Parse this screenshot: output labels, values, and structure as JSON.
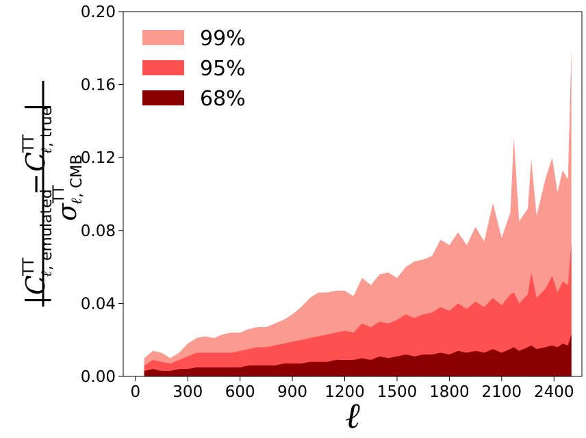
{
  "chart_data": {
    "type": "area",
    "xlabel": "ℓ",
    "ylabel": {
      "numerator": "|C_{ℓ,emulated}^{TT} − C_{ℓ,true}^{TT}|",
      "denominator": "σ_{ℓ,CMB}^{TT}",
      "num_C": "C",
      "num_ell": "ℓ",
      "num_sub1": ", emulated",
      "num_sub2": ", true",
      "num_sup": "TT",
      "num_minus": "−",
      "num_bar": "|",
      "den_sigma": "σ",
      "den_sub": ", CMB",
      "den_sup": "TT"
    },
    "xlim": [
      -70,
      2560
    ],
    "ylim": [
      0.0,
      0.2
    ],
    "xticks": [
      0,
      300,
      600,
      900,
      1200,
      1500,
      1800,
      2100,
      2400
    ],
    "xtick_labels": [
      "0",
      "300",
      "600",
      "900",
      "1200",
      "1500",
      "1800",
      "2100",
      "2400"
    ],
    "yticks": [
      0.0,
      0.04,
      0.08,
      0.12,
      0.16,
      0.2
    ],
    "ytick_labels": [
      "0.00",
      "0.04",
      "0.08",
      "0.12",
      "0.16",
      "0.20"
    ],
    "grid": false,
    "legend_position": "top-left",
    "series": [
      {
        "name": "99%",
        "color": "#fa9a90",
        "x": [
          50,
          100,
          150,
          200,
          250,
          300,
          350,
          400,
          450,
          500,
          550,
          600,
          650,
          700,
          750,
          800,
          850,
          900,
          950,
          1000,
          1050,
          1100,
          1150,
          1200,
          1250,
          1300,
          1350,
          1400,
          1450,
          1500,
          1550,
          1600,
          1650,
          1700,
          1750,
          1800,
          1850,
          1900,
          1950,
          2000,
          2050,
          2100,
          2150,
          2170,
          2200,
          2250,
          2270,
          2300,
          2350,
          2390,
          2420,
          2450,
          2480,
          2500
        ],
        "values": [
          0.01,
          0.014,
          0.013,
          0.01,
          0.013,
          0.018,
          0.021,
          0.022,
          0.021,
          0.023,
          0.024,
          0.024,
          0.026,
          0.027,
          0.027,
          0.029,
          0.031,
          0.034,
          0.038,
          0.043,
          0.046,
          0.046,
          0.047,
          0.047,
          0.044,
          0.054,
          0.05,
          0.056,
          0.057,
          0.054,
          0.06,
          0.063,
          0.064,
          0.066,
          0.075,
          0.072,
          0.079,
          0.072,
          0.082,
          0.074,
          0.095,
          0.076,
          0.09,
          0.131,
          0.085,
          0.092,
          0.119,
          0.088,
          0.108,
          0.12,
          0.101,
          0.113,
          0.108,
          0.18
        ]
      },
      {
        "name": "95%",
        "color": "#fe5050",
        "x": [
          50,
          100,
          150,
          200,
          250,
          300,
          350,
          400,
          450,
          500,
          550,
          600,
          650,
          700,
          750,
          800,
          850,
          900,
          950,
          1000,
          1050,
          1100,
          1150,
          1200,
          1250,
          1300,
          1350,
          1400,
          1450,
          1500,
          1550,
          1600,
          1650,
          1700,
          1750,
          1800,
          1850,
          1900,
          1950,
          2000,
          2050,
          2100,
          2150,
          2170,
          2200,
          2250,
          2270,
          2300,
          2350,
          2390,
          2420,
          2450,
          2480,
          2500
        ],
        "values": [
          0.006,
          0.009,
          0.008,
          0.007,
          0.009,
          0.011,
          0.013,
          0.013,
          0.013,
          0.013,
          0.013,
          0.014,
          0.015,
          0.016,
          0.016,
          0.017,
          0.018,
          0.019,
          0.02,
          0.021,
          0.022,
          0.023,
          0.024,
          0.025,
          0.024,
          0.029,
          0.027,
          0.03,
          0.029,
          0.031,
          0.034,
          0.032,
          0.034,
          0.035,
          0.038,
          0.036,
          0.04,
          0.037,
          0.041,
          0.038,
          0.043,
          0.039,
          0.045,
          0.046,
          0.04,
          0.045,
          0.057,
          0.043,
          0.048,
          0.055,
          0.046,
          0.052,
          0.05,
          0.073
        ]
      },
      {
        "name": "68%",
        "color": "#8b0000",
        "x": [
          50,
          100,
          150,
          200,
          250,
          300,
          350,
          400,
          450,
          500,
          550,
          600,
          650,
          700,
          750,
          800,
          850,
          900,
          950,
          1000,
          1050,
          1100,
          1150,
          1200,
          1250,
          1300,
          1350,
          1400,
          1450,
          1500,
          1550,
          1600,
          1650,
          1700,
          1750,
          1800,
          1850,
          1900,
          1950,
          2000,
          2050,
          2100,
          2150,
          2170,
          2200,
          2250,
          2270,
          2300,
          2350,
          2390,
          2420,
          2450,
          2480,
          2500
        ],
        "values": [
          0.003,
          0.004,
          0.003,
          0.003,
          0.004,
          0.004,
          0.005,
          0.005,
          0.005,
          0.005,
          0.005,
          0.005,
          0.006,
          0.006,
          0.006,
          0.006,
          0.007,
          0.007,
          0.007,
          0.008,
          0.008,
          0.008,
          0.009,
          0.009,
          0.009,
          0.01,
          0.009,
          0.011,
          0.01,
          0.011,
          0.012,
          0.011,
          0.012,
          0.012,
          0.013,
          0.012,
          0.014,
          0.013,
          0.014,
          0.013,
          0.015,
          0.013,
          0.015,
          0.016,
          0.014,
          0.016,
          0.017,
          0.015,
          0.016,
          0.017,
          0.016,
          0.018,
          0.017,
          0.023
        ]
      }
    ]
  }
}
